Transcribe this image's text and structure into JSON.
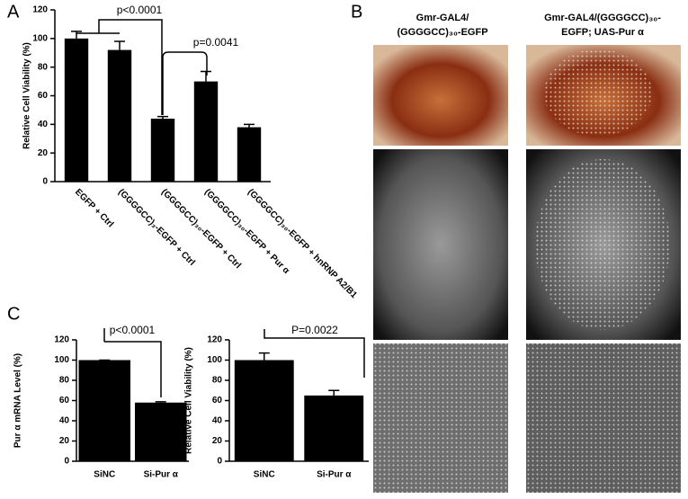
{
  "chart_data": [
    {
      "type": "bar",
      "panel_label": "A",
      "ylabel": "Relative Cell Viability (%)",
      "categories": [
        "EGFP + Ctrl",
        "(GGGGCC)₃-EGFP + Ctrl",
        "(GGGGCC)₃₀-EGFP + Ctrl",
        "(GGGGCC)₃₀-EGFP + Pur α",
        "(GGGGCC)₃₀-EGFP + hnRNP A2/B1"
      ],
      "values": [
        100,
        92,
        44,
        70,
        38
      ],
      "errors": [
        5,
        6,
        1.5,
        7,
        2
      ],
      "color": "#000000",
      "ylim": [
        0,
        120
      ],
      "yticks": [
        0,
        20,
        40,
        60,
        80,
        100,
        120
      ],
      "annotations": [
        "p<0.0001",
        "p=0.0041"
      ]
    },
    {
      "type": "bar",
      "panel_label": "C",
      "ylabel": "Pur α  mRNA Level (%)",
      "categories": [
        "SiNC",
        "Si-Pur α"
      ],
      "values": [
        100,
        58
      ],
      "errors": [
        0,
        0.8
      ],
      "color": "#000000",
      "ylim": [
        0,
        120
      ],
      "yticks": [
        0,
        20,
        40,
        60,
        80,
        100,
        120
      ],
      "annotations": [
        "p<0.0001"
      ]
    },
    {
      "type": "bar",
      "ylabel": "Relative Cell Viability (%)",
      "categories": [
        "SiNC",
        "Si-Pur α"
      ],
      "values": [
        100,
        65
      ],
      "errors": [
        7,
        5
      ],
      "color": "#000000",
      "ylim": [
        0,
        120
      ],
      "yticks": [
        0,
        20,
        40,
        60,
        80,
        100,
        120
      ],
      "annotations": [
        "P=0.0022"
      ]
    }
  ],
  "image_panel": {
    "label": "B",
    "columns": [
      [
        "Gmr-GAL4/",
        "(GGGGCC)₃₀-EGFP"
      ],
      [
        "Gmr-GAL4/(GGGGCC)₃₀-",
        "EGFP; UAS-Pur α"
      ]
    ]
  }
}
